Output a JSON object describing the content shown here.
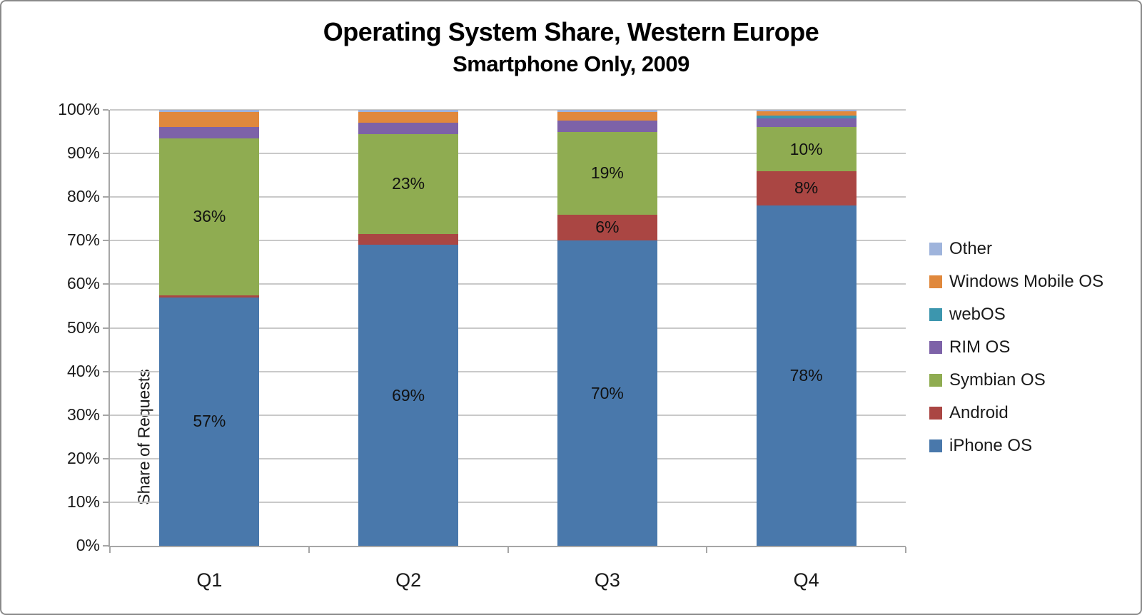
{
  "title": {
    "line1": "Operating System Share, Western Europe",
    "line2": "Smartphone Only, 2009"
  },
  "y_axis": {
    "title": "Share of Requests",
    "tick_labels": [
      "0%",
      "10%",
      "20%",
      "30%",
      "40%",
      "50%",
      "60%",
      "70%",
      "80%",
      "90%",
      "100%"
    ]
  },
  "x_axis": {
    "categories": [
      "Q1",
      "Q2",
      "Q3",
      "Q4"
    ]
  },
  "legend": {
    "position": "right",
    "items_top_to_bottom": [
      {
        "label": "Other",
        "color": "#9fb4dc"
      },
      {
        "label": "Windows Mobile OS",
        "color": "#e0883c"
      },
      {
        "label": "webOS",
        "color": "#3c96ae"
      },
      {
        "label": "RIM OS",
        "color": "#7d62a8"
      },
      {
        "label": "Symbian OS",
        "color": "#8fac51"
      },
      {
        "label": "Android",
        "color": "#aa4643"
      },
      {
        "label": "iPhone OS",
        "color": "#4978ab"
      }
    ]
  },
  "chart_data": {
    "type": "bar",
    "stacked": true,
    "percent_stacked": true,
    "title": "Operating System Share, Western Europe",
    "subtitle": "Smartphone Only, 2009",
    "xlabel": "",
    "ylabel": "Share of Requests",
    "ylim": [
      0,
      100
    ],
    "grid": true,
    "legend_position": "right",
    "categories": [
      "Q1",
      "Q2",
      "Q3",
      "Q4"
    ],
    "series_bottom_to_top": [
      {
        "name": "iPhone OS",
        "color": "#4978ab",
        "values": [
          57,
          69,
          70,
          78
        ],
        "labels": [
          "57%",
          "69%",
          "70%",
          "78%"
        ]
      },
      {
        "name": "Android",
        "color": "#aa4643",
        "values": [
          0.5,
          2.5,
          6,
          8
        ],
        "labels": [
          null,
          null,
          "6%",
          "8%"
        ]
      },
      {
        "name": "Symbian OS",
        "color": "#8fac51",
        "values": [
          36,
          23,
          19,
          10
        ],
        "labels": [
          "36%",
          "23%",
          "19%",
          "10%"
        ]
      },
      {
        "name": "RIM OS",
        "color": "#7d62a8",
        "values": [
          2.5,
          2.5,
          2.5,
          2
        ],
        "labels": [
          null,
          null,
          null,
          null
        ]
      },
      {
        "name": "webOS",
        "color": "#3c96ae",
        "values": [
          0,
          0,
          0,
          0.7
        ],
        "labels": [
          null,
          null,
          null,
          null
        ]
      },
      {
        "name": "Windows Mobile OS",
        "color": "#e0883c",
        "values": [
          3.5,
          2.5,
          2,
          1
        ],
        "labels": [
          null,
          null,
          null,
          null
        ]
      },
      {
        "name": "Other",
        "color": "#9fb4dc",
        "values": [
          0.5,
          0.5,
          0.5,
          0.3
        ],
        "labels": [
          null,
          null,
          null,
          null
        ]
      }
    ]
  }
}
